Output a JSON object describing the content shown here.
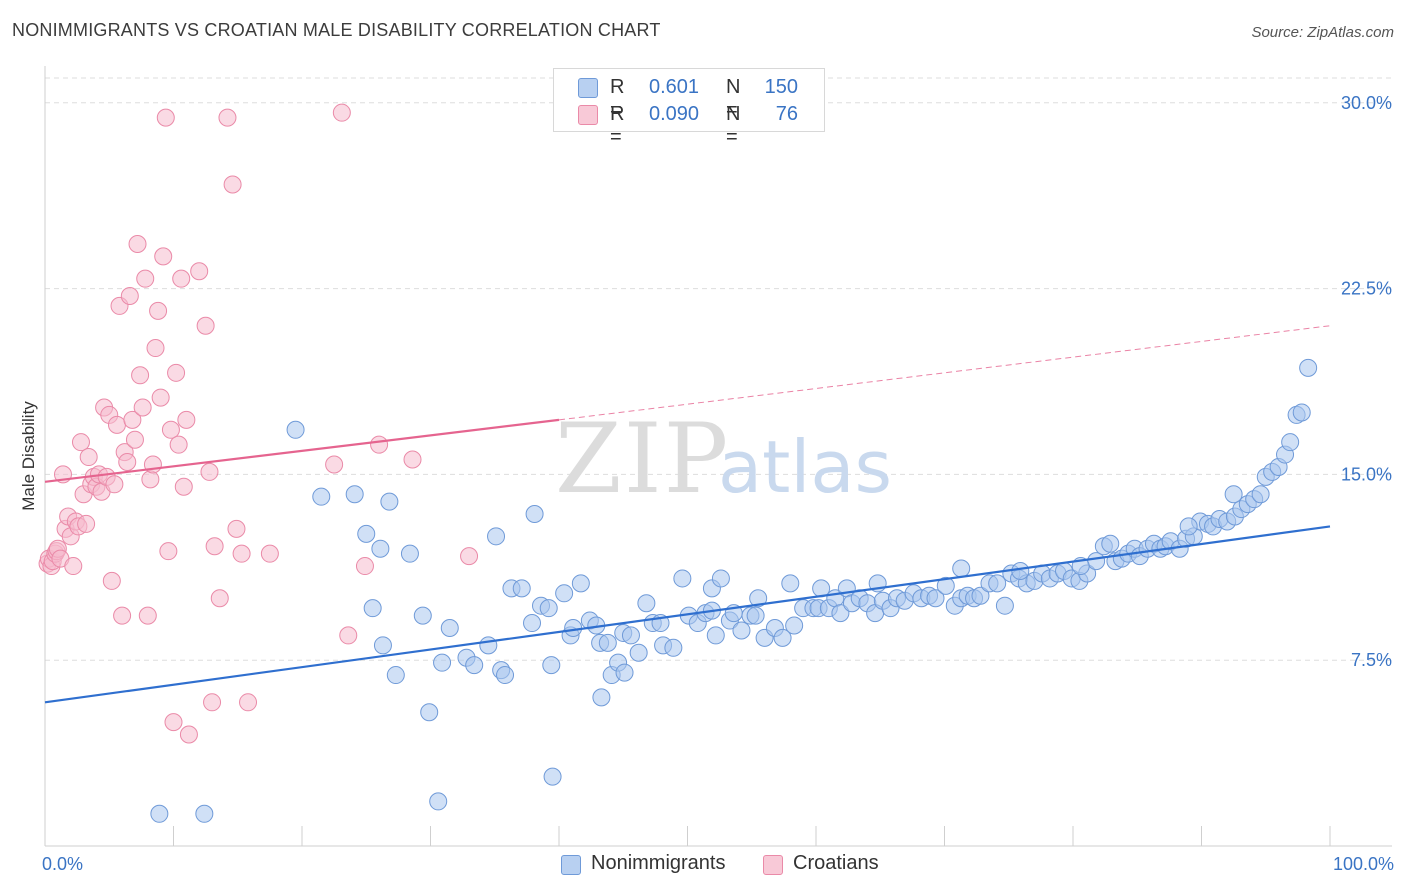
{
  "title": "NONIMMIGRANTS VS CROATIAN MALE DISABILITY CORRELATION CHART",
  "source": "Source: ZipAtlas.com",
  "watermark": {
    "zip": "ZIP",
    "atlas": "atlas"
  },
  "colors": {
    "blue_fill": "#a9c6ee",
    "blue_stroke": "#6f9ad8",
    "blue_line": "#2f6fcf",
    "pink_fill": "#f6bccd",
    "pink_stroke": "#ea8aa8",
    "pink_line": "#e5648f",
    "axis_text": "#3a74c4",
    "grid": "#dddddd"
  },
  "legend": {
    "rows": [
      {
        "r_label": "R =",
        "r": "0.601",
        "n_label": "N =",
        "n": "150",
        "series": "Nonimmigrants"
      },
      {
        "r_label": "R =",
        "r": "0.090",
        "n_label": "N =",
        "n": "76",
        "series": "Croatians"
      }
    ]
  },
  "chart_data": {
    "type": "scatter",
    "title": "NONIMMIGRANTS VS CROATIAN MALE DISABILITY CORRELATION CHART",
    "xlabel": "",
    "ylabel": "Male Disability",
    "xlim": [
      0,
      100
    ],
    "ylim": [
      0,
      31
    ],
    "x_tick_labels": [
      "0.0%",
      "100.0%"
    ],
    "y_ticks": [
      7.5,
      15.0,
      22.5,
      30.0
    ],
    "y_tick_labels": [
      "7.5%",
      "15.0%",
      "22.5%",
      "30.0%"
    ],
    "grid": true,
    "legend_position": "top-center",
    "series": [
      {
        "name": "Nonimmigrants",
        "trend": {
          "x": [
            0,
            100
          ],
          "y": [
            5.8,
            12.9
          ]
        },
        "points": [
          [
            8.9,
            1.3
          ],
          [
            12.4,
            1.3
          ],
          [
            19.5,
            16.8
          ],
          [
            21.5,
            14.1
          ],
          [
            24.1,
            14.2
          ],
          [
            25.0,
            12.6
          ],
          [
            25.5,
            9.6
          ],
          [
            26.1,
            12.0
          ],
          [
            26.3,
            8.1
          ],
          [
            26.8,
            13.9
          ],
          [
            27.3,
            6.9
          ],
          [
            28.4,
            11.8
          ],
          [
            29.4,
            9.3
          ],
          [
            29.9,
            5.4
          ],
          [
            30.6,
            1.8
          ],
          [
            30.9,
            7.4
          ],
          [
            31.5,
            8.8
          ],
          [
            32.8,
            7.6
          ],
          [
            33.4,
            7.3
          ],
          [
            34.5,
            8.1
          ],
          [
            35.1,
            12.5
          ],
          [
            35.5,
            7.1
          ],
          [
            35.8,
            6.9
          ],
          [
            36.3,
            10.4
          ],
          [
            37.1,
            10.4
          ],
          [
            37.9,
            9.0
          ],
          [
            38.1,
            13.4
          ],
          [
            38.6,
            9.7
          ],
          [
            39.2,
            9.6
          ],
          [
            39.4,
            7.3
          ],
          [
            39.5,
            2.8
          ],
          [
            40.4,
            10.2
          ],
          [
            40.9,
            8.5
          ],
          [
            41.1,
            8.8
          ],
          [
            41.7,
            10.6
          ],
          [
            42.4,
            9.1
          ],
          [
            42.9,
            8.9
          ],
          [
            43.2,
            8.2
          ],
          [
            43.3,
            6.0
          ],
          [
            43.8,
            8.2
          ],
          [
            44.1,
            6.9
          ],
          [
            44.6,
            7.4
          ],
          [
            45.0,
            8.6
          ],
          [
            45.1,
            7.0
          ],
          [
            45.6,
            8.5
          ],
          [
            46.2,
            7.8
          ],
          [
            46.8,
            9.8
          ],
          [
            47.3,
            9.0
          ],
          [
            47.9,
            9.0
          ],
          [
            48.1,
            8.1
          ],
          [
            48.9,
            8.0
          ],
          [
            49.6,
            10.8
          ],
          [
            50.1,
            9.3
          ],
          [
            50.8,
            9.0
          ],
          [
            51.4,
            9.4
          ],
          [
            51.9,
            10.4
          ],
          [
            52.2,
            8.5
          ],
          [
            52.6,
            10.8
          ],
          [
            53.3,
            9.1
          ],
          [
            53.6,
            9.4
          ],
          [
            54.2,
            8.7
          ],
          [
            54.9,
            9.3
          ],
          [
            55.3,
            9.3
          ],
          [
            56.0,
            8.4
          ],
          [
            56.8,
            8.8
          ],
          [
            57.4,
            8.4
          ],
          [
            58.0,
            10.6
          ],
          [
            58.3,
            8.9
          ],
          [
            59.0,
            9.6
          ],
          [
            59.8,
            9.6
          ],
          [
            60.2,
            9.6
          ],
          [
            61.0,
            9.6
          ],
          [
            61.5,
            10.0
          ],
          [
            61.9,
            9.4
          ],
          [
            62.4,
            10.4
          ],
          [
            62.8,
            9.8
          ],
          [
            63.4,
            10.0
          ],
          [
            64.0,
            9.8
          ],
          [
            64.6,
            9.4
          ],
          [
            65.2,
            9.9
          ],
          [
            65.8,
            9.6
          ],
          [
            66.3,
            10.0
          ],
          [
            66.9,
            9.9
          ],
          [
            67.6,
            10.2
          ],
          [
            68.2,
            10.0
          ],
          [
            68.8,
            10.1
          ],
          [
            69.3,
            10.0
          ],
          [
            70.1,
            10.5
          ],
          [
            70.8,
            9.7
          ],
          [
            71.3,
            10.0
          ],
          [
            71.8,
            10.1
          ],
          [
            72.3,
            10.0
          ],
          [
            72.8,
            10.1
          ],
          [
            73.5,
            10.6
          ],
          [
            74.1,
            10.6
          ],
          [
            74.7,
            9.7
          ],
          [
            75.2,
            11.0
          ],
          [
            75.8,
            10.8
          ],
          [
            76.4,
            10.6
          ],
          [
            77.0,
            10.7
          ],
          [
            77.6,
            11.0
          ],
          [
            78.2,
            10.8
          ],
          [
            78.8,
            11.0
          ],
          [
            79.3,
            11.1
          ],
          [
            79.9,
            10.8
          ],
          [
            80.5,
            10.7
          ],
          [
            81.1,
            11.0
          ],
          [
            81.8,
            11.5
          ],
          [
            82.4,
            12.1
          ],
          [
            82.9,
            12.2
          ],
          [
            83.3,
            11.5
          ],
          [
            83.8,
            11.6
          ],
          [
            84.3,
            11.8
          ],
          [
            84.8,
            12.0
          ],
          [
            85.2,
            11.7
          ],
          [
            85.8,
            12.0
          ],
          [
            86.3,
            12.2
          ],
          [
            86.8,
            12.0
          ],
          [
            87.2,
            12.1
          ],
          [
            87.6,
            12.3
          ],
          [
            88.3,
            12.0
          ],
          [
            88.8,
            12.4
          ],
          [
            89.4,
            12.5
          ],
          [
            89.9,
            13.1
          ],
          [
            90.5,
            13.0
          ],
          [
            90.9,
            12.9
          ],
          [
            91.4,
            13.2
          ],
          [
            92.0,
            13.1
          ],
          [
            92.6,
            13.3
          ],
          [
            93.1,
            13.6
          ],
          [
            93.6,
            13.8
          ],
          [
            94.1,
            14.0
          ],
          [
            94.6,
            14.2
          ],
          [
            95.0,
            14.9
          ],
          [
            95.5,
            15.1
          ],
          [
            96.0,
            15.3
          ],
          [
            96.5,
            15.8
          ],
          [
            96.9,
            16.3
          ],
          [
            97.4,
            17.4
          ],
          [
            97.8,
            17.5
          ],
          [
            98.3,
            19.3
          ],
          [
            92.5,
            14.2
          ],
          [
            89.0,
            12.9
          ],
          [
            80.6,
            11.3
          ],
          [
            75.9,
            11.1
          ],
          [
            71.3,
            11.2
          ],
          [
            64.8,
            10.6
          ],
          [
            60.4,
            10.4
          ],
          [
            55.5,
            10.0
          ],
          [
            51.9,
            9.5
          ]
        ]
      },
      {
        "name": "Croatians",
        "trend": {
          "x": [
            0,
            40
          ],
          "y": [
            14.7,
            17.2
          ]
        },
        "trend_extended": {
          "x": [
            40,
            100
          ],
          "y": [
            17.2,
            21.0
          ]
        },
        "points": [
          [
            0.2,
            11.4
          ],
          [
            0.3,
            11.6
          ],
          [
            0.5,
            11.3
          ],
          [
            0.6,
            11.5
          ],
          [
            0.8,
            11.8
          ],
          [
            0.9,
            11.9
          ],
          [
            1.0,
            12.0
          ],
          [
            1.2,
            11.6
          ],
          [
            1.4,
            15.0
          ],
          [
            1.6,
            12.8
          ],
          [
            1.8,
            13.3
          ],
          [
            2.0,
            12.5
          ],
          [
            2.2,
            11.3
          ],
          [
            2.4,
            13.1
          ],
          [
            2.6,
            12.9
          ],
          [
            2.8,
            16.3
          ],
          [
            3.0,
            14.2
          ],
          [
            3.2,
            13.0
          ],
          [
            3.4,
            15.7
          ],
          [
            3.6,
            14.6
          ],
          [
            3.8,
            14.9
          ],
          [
            4.0,
            14.5
          ],
          [
            4.2,
            15.0
          ],
          [
            4.4,
            14.3
          ],
          [
            4.6,
            17.7
          ],
          [
            4.8,
            14.9
          ],
          [
            5.0,
            17.4
          ],
          [
            5.2,
            10.7
          ],
          [
            5.4,
            14.6
          ],
          [
            5.6,
            17.0
          ],
          [
            5.8,
            21.8
          ],
          [
            6.0,
            9.3
          ],
          [
            6.2,
            15.9
          ],
          [
            6.4,
            15.5
          ],
          [
            6.6,
            22.2
          ],
          [
            6.8,
            17.2
          ],
          [
            7.0,
            16.4
          ],
          [
            7.2,
            24.3
          ],
          [
            7.4,
            19.0
          ],
          [
            7.6,
            17.7
          ],
          [
            7.8,
            22.9
          ],
          [
            8.0,
            9.3
          ],
          [
            8.2,
            14.8
          ],
          [
            8.4,
            15.4
          ],
          [
            8.6,
            20.1
          ],
          [
            8.8,
            21.6
          ],
          [
            9.0,
            18.1
          ],
          [
            9.2,
            23.8
          ],
          [
            9.4,
            29.4
          ],
          [
            9.6,
            11.9
          ],
          [
            9.8,
            16.8
          ],
          [
            10.0,
            5.0
          ],
          [
            10.2,
            19.1
          ],
          [
            10.4,
            16.2
          ],
          [
            10.6,
            22.9
          ],
          [
            10.8,
            14.5
          ],
          [
            11.0,
            17.2
          ],
          [
            11.2,
            4.5
          ],
          [
            12.0,
            23.2
          ],
          [
            12.5,
            21.0
          ],
          [
            12.8,
            15.1
          ],
          [
            13.0,
            5.8
          ],
          [
            13.2,
            12.1
          ],
          [
            13.6,
            10.0
          ],
          [
            14.2,
            29.4
          ],
          [
            14.6,
            26.7
          ],
          [
            14.9,
            12.8
          ],
          [
            15.3,
            11.8
          ],
          [
            15.8,
            5.8
          ],
          [
            17.5,
            11.8
          ],
          [
            22.5,
            15.4
          ],
          [
            23.1,
            29.6
          ],
          [
            23.6,
            8.5
          ],
          [
            24.9,
            11.3
          ],
          [
            26.0,
            16.2
          ],
          [
            28.6,
            15.6
          ],
          [
            33.0,
            11.7
          ]
        ]
      }
    ]
  },
  "bottom_legend": {
    "items": [
      "Nonimmigrants",
      "Croatians"
    ]
  }
}
